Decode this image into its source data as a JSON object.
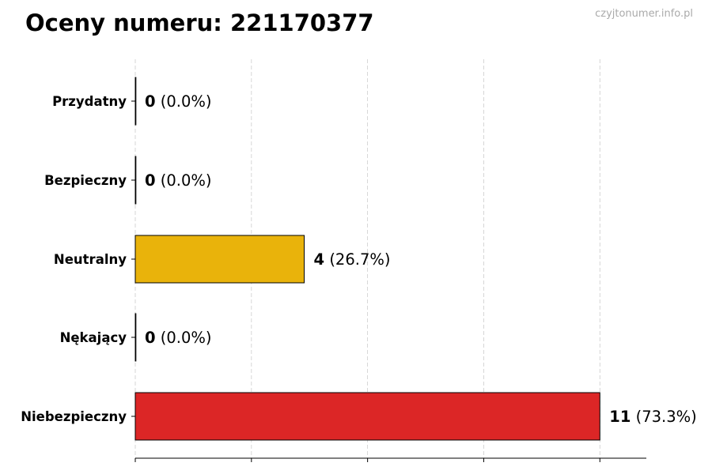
{
  "title": "Oceny numeru: 221170377",
  "watermark": "czyjtonumer.info.pl",
  "chart_data": {
    "type": "bar",
    "orientation": "horizontal",
    "title": "Oceny numeru: 221170377",
    "categories": [
      "Przydatny",
      "Bezpieczny",
      "Neutralny",
      "Nękający",
      "Niebezpieczny"
    ],
    "values": [
      0,
      0,
      4,
      0,
      11
    ],
    "labels_pct": [
      "(0.0%)",
      "(0.0%)",
      "(26.7%)",
      "(0.0%)",
      "(73.3%)"
    ],
    "colors": [
      "#2ca02c",
      "#1f77b4",
      "#e9b30b",
      "#8c564b",
      "#dc2626"
    ],
    "xlim": [
      0,
      12.1
    ],
    "xticks": [
      0,
      2.75,
      5.5,
      8.25,
      11
    ],
    "xtick_labels_shown": false,
    "grid": "x-dashed",
    "xlabel": "",
    "ylabel": ""
  }
}
